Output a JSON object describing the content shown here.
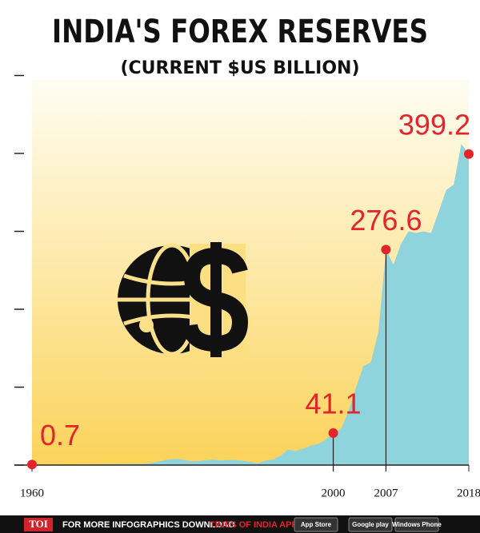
{
  "chart_data": {
    "type": "area",
    "title": "INDIA'S FOREX RESERVES",
    "subtitle": "(CURRENT $US BILLION)",
    "x": [
      1960,
      1961,
      1962,
      1963,
      1964,
      1965,
      1966,
      1967,
      1968,
      1969,
      1970,
      1971,
      1972,
      1973,
      1974,
      1975,
      1976,
      1977,
      1978,
      1979,
      1980,
      1981,
      1982,
      1983,
      1984,
      1985,
      1986,
      1987,
      1988,
      1989,
      1990,
      1991,
      1992,
      1993,
      1994,
      1995,
      1996,
      1997,
      1998,
      1999,
      2000,
      2001,
      2002,
      2003,
      2004,
      2005,
      2006,
      2007,
      2008,
      2009,
      2010,
      2011,
      2012,
      2013,
      2014,
      2015,
      2016,
      2017,
      2018
    ],
    "values": [
      0.7,
      0.7,
      0.5,
      0.6,
      0.5,
      0.6,
      0.7,
      0.7,
      0.8,
      1.0,
      1.0,
      1.1,
      1.2,
      1.3,
      1.4,
      1.5,
      3.0,
      5.0,
      7.0,
      8.0,
      7.0,
      5.0,
      5.0,
      6.0,
      7.0,
      6.0,
      6.5,
      6.5,
      5.5,
      4.0,
      2.2,
      5.8,
      7.0,
      12.0,
      20.0,
      18.0,
      21.0,
      25.0,
      27.0,
      33.0,
      41.1,
      46,
      68,
      99,
      127,
      132,
      171,
      276.6,
      257,
      284,
      300,
      298,
      300,
      298,
      325,
      353,
      360,
      412,
      399.2
    ],
    "color": "#8fd3dc",
    "annotations": [
      {
        "x": 1960,
        "value": 0.7
      },
      {
        "x": 2000,
        "value": 41.1
      },
      {
        "x": 2007,
        "value": 276.6
      },
      {
        "x": 2018,
        "value": 399.2
      }
    ],
    "annotation_color": "#e3242b",
    "xlim": [
      1960,
      2018
    ],
    "xticks": [
      1960,
      2000,
      2007,
      2018
    ],
    "ylim": [
      0,
      500
    ],
    "yticks": [
      0,
      100,
      200,
      300,
      400,
      500
    ]
  },
  "footer": {
    "brand": "TOI",
    "text": "FOR MORE  INFOGRAPHICS DOWNLOAD",
    "app": "TIMES OF INDIA  APP",
    "badges": [
      "App Store",
      "Google play",
      "Windows Phone"
    ]
  }
}
